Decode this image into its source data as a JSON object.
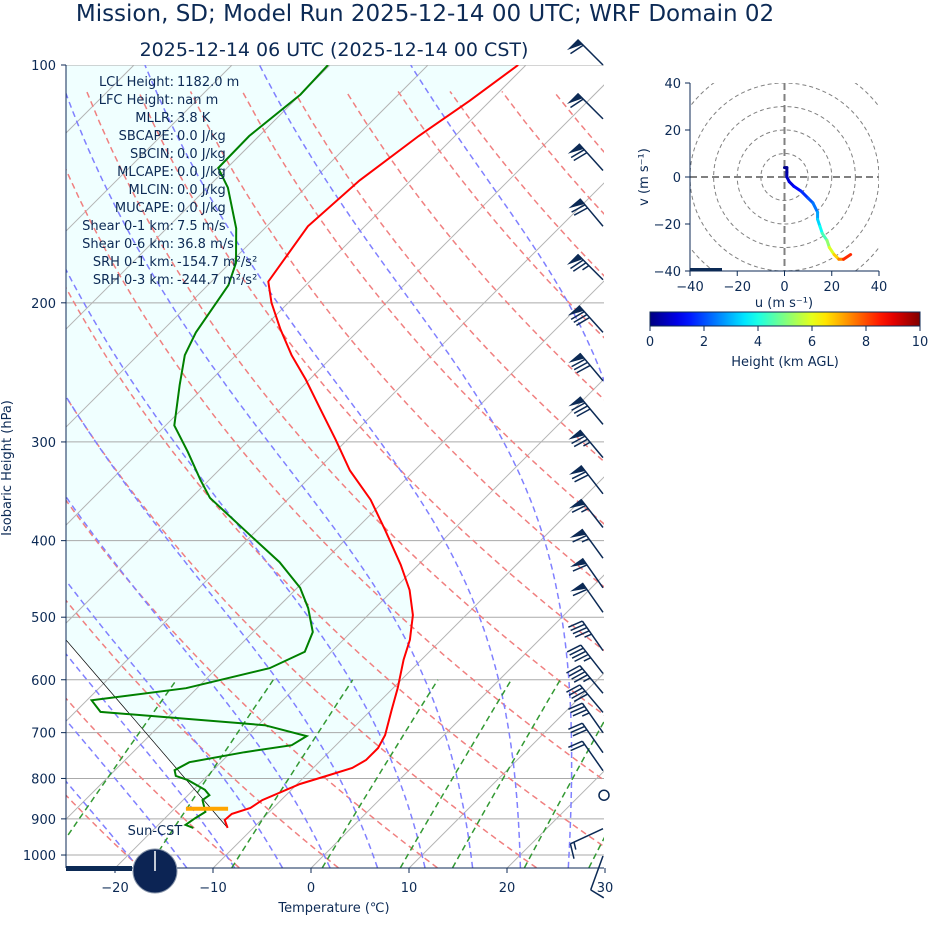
{
  "title": "Mission, SD; Model Run 2025-12-14 00 UTC; WRF Domain 02",
  "subtitle": "2025-12-14 06 UTC  (2025-12-14 00 CST)",
  "stats": [
    {
      "label": "LCL Height:",
      "value": "1182.0 m"
    },
    {
      "label": "LFC Height:",
      "value": "nan m"
    },
    {
      "label": "MLLR:",
      "value": "3.8 K"
    },
    {
      "label": "SBCAPE:",
      "value": "0.0 J/kg"
    },
    {
      "label": "SBCIN:",
      "value": "0.0 J/kg"
    },
    {
      "label": "MLCAPE:",
      "value": "0.0 J/kg"
    },
    {
      "label": "MLCIN:",
      "value": "0.0 J/kg"
    },
    {
      "label": "MUCAPE:",
      "value": "0.0 J/kg"
    },
    {
      "label": "Shear 0-1 km:",
      "value": "7.5 m/s"
    },
    {
      "label": "Shear 0-6 km:",
      "value": "36.8 m/s"
    },
    {
      "label": "SRH 0-1 km:",
      "value": "-154.7 m²/s²"
    },
    {
      "label": "SRH 0-3 km:",
      "value": "-244.7 m²/s²"
    }
  ],
  "sun_label": "Sun-CST",
  "colors": {
    "text": "#0c2a55",
    "temperature": "#ff0000",
    "dewpoint": "#008000",
    "parcel": "#000000",
    "cin_fill": "#f0ffff",
    "dry_adiabat": "#f08080",
    "moist_adiabat": "#8080ff",
    "mixing_ratio": "#339933",
    "isotherm": "#b4b4b4",
    "barb": "#0c2a55",
    "lcl_marker": "#ffa500"
  },
  "chart_data": [
    {
      "type": "line",
      "kind": "skew-T log-p",
      "xlabel": "Temperature (℃)",
      "ylabel": "Isobaric Height (hPa)",
      "x_ticks": [
        -20,
        -10,
        0,
        10,
        20,
        30
      ],
      "y_ticks": [
        100,
        200,
        300,
        400,
        500,
        600,
        700,
        800,
        900,
        1000
      ],
      "xlim": [
        -25,
        30
      ],
      "ylim": [
        1038,
        100
      ],
      "y_scale": "log",
      "skew_deg": 45,
      "grid": true,
      "series": [
        {
          "id": "temperature",
          "points": [
            [
              924,
              -12.6
            ],
            [
              903,
              -13.7
            ],
            [
              887,
              -13.6
            ],
            [
              872,
              -12.3
            ],
            [
              852,
              -11.9
            ],
            [
              813,
              -9.7
            ],
            [
              792,
              -7.6
            ],
            [
              776,
              -6.0
            ],
            [
              758,
              -5.4
            ],
            [
              732,
              -5.4
            ],
            [
              705,
              -6.0
            ],
            [
              655,
              -7.9
            ],
            [
              615,
              -9.5
            ],
            [
              566,
              -11.8
            ],
            [
              534,
              -13.2
            ],
            [
              497,
              -15.4
            ],
            [
              462,
              -18.3
            ],
            [
              429,
              -21.8
            ],
            [
              388,
              -26.9
            ],
            [
              355,
              -31.5
            ],
            [
              326,
              -36.6
            ],
            [
              298,
              -41.2
            ],
            [
              273,
              -45.8
            ],
            [
              250,
              -50.4
            ],
            [
              233,
              -54.3
            ],
            [
              216,
              -58.1
            ],
            [
              200,
              -61.7
            ],
            [
              188,
              -64.2
            ],
            [
              160,
              -65.8
            ],
            [
              140,
              -65.2
            ],
            [
              123,
              -63.7
            ],
            [
              111,
              -62.1
            ],
            [
              100,
              -60.8
            ]
          ]
        },
        {
          "id": "dewpoint",
          "points": [
            [
              924,
              -16.1
            ],
            [
              916,
              -17.2
            ],
            [
              898,
              -16.9
            ],
            [
              882,
              -16.5
            ],
            [
              852,
              -18.0
            ],
            [
              840,
              -17.8
            ],
            [
              827,
              -18.8
            ],
            [
              804,
              -21.5
            ],
            [
              794,
              -23.2
            ],
            [
              781,
              -23.9
            ],
            [
              763,
              -23.2
            ],
            [
              741,
              -18.6
            ],
            [
              726,
              -14.5
            ],
            [
              707,
              -13.9
            ],
            [
              685,
              -19.3
            ],
            [
              659,
              -37.4
            ],
            [
              637,
              -39.5
            ],
            [
              615,
              -31.1
            ],
            [
              580,
              -24.6
            ],
            [
              553,
              -22.7
            ],
            [
              522,
              -23.9
            ],
            [
              487,
              -26.8
            ],
            [
              459,
              -29.7
            ],
            [
              426,
              -34.4
            ],
            [
              399,
              -39.2
            ],
            [
              353,
              -48.1
            ],
            [
              335,
              -50.9
            ],
            [
              309,
              -55.0
            ],
            [
              286,
              -59.1
            ],
            [
              254,
              -62.7
            ],
            [
              233,
              -65.2
            ],
            [
              218,
              -66.4
            ],
            [
              190,
              -67.9
            ],
            [
              178,
              -69.4
            ],
            [
              161,
              -72.9
            ],
            [
              143,
              -77.9
            ],
            [
              135,
              -80.9
            ],
            [
              123,
              -81.0
            ],
            [
              109,
              -80.0
            ],
            [
              100,
              -80.2
            ]
          ]
        },
        {
          "id": "parcel",
          "points": [
            [
              924,
              -12.6
            ],
            [
              534,
              -48.3
            ]
          ]
        }
      ],
      "lcl_marker": {
        "p": 874,
        "t_range": [
          -18.8,
          -14.5
        ]
      },
      "dry_adiabats_theta_K": [
        233,
        243,
        253,
        263,
        273,
        283,
        293,
        303,
        313,
        323,
        333,
        343,
        353,
        363,
        373,
        383,
        393,
        403,
        413,
        423,
        433,
        443,
        453,
        463,
        473
      ],
      "moist_adiabats_t1000_C": [
        -20,
        -15,
        -10,
        -5,
        0,
        5,
        10,
        15,
        20,
        25,
        30,
        35,
        40
      ],
      "mixing_ratios_kgkg": [
        0.0004,
        0.001,
        0.002,
        0.004,
        0.007,
        0.01,
        0.016,
        0.024,
        0.032
      ],
      "wind_barbs": [
        {
          "p": 100,
          "speed_kt": 60,
          "dir_deg": 315
        },
        {
          "p": 117,
          "speed_kt": 60,
          "dir_deg": 315
        },
        {
          "p": 136,
          "speed_kt": 70,
          "dir_deg": 318
        },
        {
          "p": 160,
          "speed_kt": 70,
          "dir_deg": 320
        },
        {
          "p": 187,
          "speed_kt": 75,
          "dir_deg": 315
        },
        {
          "p": 218,
          "speed_kt": 80,
          "dir_deg": 318
        },
        {
          "p": 251,
          "speed_kt": 80,
          "dir_deg": 320
        },
        {
          "p": 285,
          "speed_kt": 80,
          "dir_deg": 320
        },
        {
          "p": 314,
          "speed_kt": 75,
          "dir_deg": 320
        },
        {
          "p": 349,
          "speed_kt": 70,
          "dir_deg": 322
        },
        {
          "p": 385,
          "speed_kt": 65,
          "dir_deg": 322
        },
        {
          "p": 421,
          "speed_kt": 65,
          "dir_deg": 324
        },
        {
          "p": 459,
          "speed_kt": 60,
          "dir_deg": 325
        },
        {
          "p": 493,
          "speed_kt": 60,
          "dir_deg": 325
        },
        {
          "p": 551,
          "speed_kt": 45,
          "dir_deg": 325
        },
        {
          "p": 589,
          "speed_kt": 45,
          "dir_deg": 322
        },
        {
          "p": 624,
          "speed_kt": 45,
          "dir_deg": 320
        },
        {
          "p": 660,
          "speed_kt": 40,
          "dir_deg": 320
        },
        {
          "p": 700,
          "speed_kt": 35,
          "dir_deg": 325
        },
        {
          "p": 742,
          "speed_kt": 30,
          "dir_deg": 325
        },
        {
          "p": 782,
          "speed_kt": 20,
          "dir_deg": 325
        },
        {
          "p": 840,
          "speed_kt": 0,
          "dir_deg": 0
        },
        {
          "p": 926,
          "speed_kt": 15,
          "dir_deg": 245
        },
        {
          "p": 1003,
          "speed_kt": 10,
          "dir_deg": 200
        }
      ]
    },
    {
      "type": "line",
      "kind": "hodograph",
      "xlabel": "u (m s⁻¹)",
      "ylabel": "v (m s⁻¹)",
      "x_ticks": [
        -40,
        -20,
        0,
        20,
        40
      ],
      "y_ticks": [
        40,
        20,
        0,
        -20,
        -40
      ],
      "xlim": [
        -40,
        40
      ],
      "ylim": [
        -40,
        40
      ],
      "ring_increment": 10,
      "points_u_v_heightkm": [
        [
          0,
          4,
          0.0
        ],
        [
          1,
          4,
          0.1
        ],
        [
          1,
          2,
          0.3
        ],
        [
          1,
          0,
          0.5
        ],
        [
          2,
          -2,
          0.8
        ],
        [
          4,
          -4,
          1.1
        ],
        [
          7,
          -6,
          1.5
        ],
        [
          10,
          -9,
          1.9
        ],
        [
          12,
          -11,
          2.2
        ],
        [
          14,
          -15,
          2.6
        ],
        [
          14,
          -18,
          3.1
        ],
        [
          15,
          -21,
          3.6
        ],
        [
          16,
          -24,
          4.1
        ],
        [
          18,
          -27,
          4.8
        ],
        [
          19,
          -30,
          5.5
        ],
        [
          21,
          -33,
          6.3
        ],
        [
          23,
          -35,
          7.1
        ],
        [
          25,
          -35,
          7.9
        ],
        [
          28,
          -33,
          8.8
        ]
      ],
      "colorbar": {
        "label": "Height (km AGL)",
        "range": [
          0,
          10
        ],
        "ticks": [
          0,
          2,
          4,
          6,
          8,
          10
        ],
        "colormap": "jet"
      }
    }
  ]
}
